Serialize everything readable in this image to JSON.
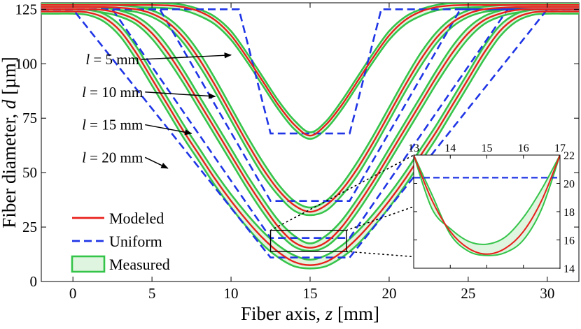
{
  "chart_data": {
    "type": "line",
    "xlabel": "Fiber axis, z [mm]",
    "ylabel": "Fiber diameter, d [µm]",
    "xlim": [
      -2,
      32
    ],
    "ylim": [
      0,
      128
    ],
    "xticks": [
      "0",
      "5",
      "10",
      "15",
      "20",
      "25",
      "30"
    ],
    "yticks": [
      "0",
      "25",
      "50",
      "75",
      "100",
      "125"
    ],
    "grid": false,
    "legend_position": "bottom-left",
    "legend": [
      {
        "name": "Modeled",
        "style": "solid",
        "color": "#e8201c"
      },
      {
        "name": "Uniform",
        "style": "dashed",
        "color": "#1f35e6"
      },
      {
        "name": "Measured",
        "style": "band",
        "color": "#35c44a",
        "fill": "#dff5df"
      }
    ],
    "annotations": [
      {
        "text": "l = 5 mm",
        "l_mm": 5,
        "label_at": [
          2.5,
          102
        ],
        "arrow_to": [
          10.0,
          104
        ]
      },
      {
        "text": "l = 10 mm",
        "l_mm": 10,
        "label_at": [
          2.5,
          87
        ],
        "arrow_to": [
          9.0,
          85
        ]
      },
      {
        "text": "l = 15 mm",
        "l_mm": 15,
        "label_at": [
          2.5,
          72
        ],
        "arrow_to": [
          7.5,
          68
        ]
      },
      {
        "text": "l = 20 mm",
        "l_mm": 20,
        "label_at": [
          2.5,
          57
        ],
        "arrow_to": [
          6.0,
          52
        ]
      }
    ],
    "series": [
      {
        "l_mm": 5,
        "modeled": {
          "x": [
            -2,
            3,
            5,
            6,
            7,
            8,
            9,
            10,
            11,
            12,
            13,
            14,
            15,
            16,
            17,
            18,
            19,
            20,
            21,
            22,
            23,
            24,
            25,
            26,
            27,
            28,
            29,
            30,
            32
          ],
          "y": [
            127,
            127,
            127,
            126.8,
            126,
            124,
            120,
            113,
            103,
            92,
            81,
            72,
            67,
            72,
            81,
            92,
            103,
            113,
            120,
            124,
            126,
            126.8,
            127,
            127,
            127,
            127,
            127,
            127,
            127
          ]
        },
        "measured_upper": {
          "x": [
            -2,
            3,
            6,
            7,
            8,
            9,
            10,
            11,
            12,
            13,
            14,
            15,
            16,
            17,
            18,
            19,
            20,
            21,
            22,
            23,
            24,
            26,
            28,
            30,
            32
          ],
          "y": [
            128,
            128,
            127.7,
            127,
            125,
            121.5,
            115,
            105,
            94,
            83,
            74,
            68.5,
            73.5,
            83,
            94,
            105,
            115,
            121.5,
            125,
            127,
            127.8,
            128,
            128,
            128,
            128
          ]
        },
        "measured_lower": {
          "x": [
            -2,
            3,
            6,
            7,
            8,
            9,
            10,
            11,
            12,
            13,
            14,
            15,
            16,
            17,
            18,
            19,
            20,
            21,
            22,
            23,
            24,
            26,
            28,
            30,
            32
          ],
          "y": [
            126,
            126,
            125.5,
            124.5,
            122,
            118,
            111,
            101,
            90,
            79,
            70,
            65.5,
            70,
            79,
            90,
            101,
            111,
            118,
            122,
            124.5,
            125.5,
            126,
            126,
            126,
            126
          ]
        },
        "uniform": {
          "x": [
            -2,
            10.5,
            12.5,
            17.5,
            19.5,
            32
          ],
          "y": [
            125,
            125,
            68,
            68,
            125,
            125
          ]
        }
      },
      {
        "l_mm": 10,
        "modeled": {
          "x": [
            -2,
            2,
            3,
            4,
            5,
            6,
            7,
            8,
            9,
            10,
            11,
            12,
            13,
            14,
            15,
            16,
            17,
            18,
            19,
            20,
            21,
            22,
            23,
            24,
            25,
            26,
            27,
            28,
            30,
            32
          ],
          "y": [
            126,
            126,
            125.7,
            125,
            123,
            119,
            112,
            102,
            90,
            77,
            64,
            52,
            42,
            35,
            32,
            35,
            42,
            52,
            64,
            77,
            90,
            102,
            112,
            119,
            123,
            125,
            125.7,
            126,
            126,
            126
          ]
        },
        "measured_upper": {
          "x": [
            -2,
            2,
            3,
            4,
            5,
            6,
            7,
            8,
            9,
            10,
            11,
            12,
            13,
            14,
            15,
            16,
            17,
            18,
            19,
            20,
            21,
            22,
            23,
            24,
            25,
            26,
            27,
            28,
            30,
            32
          ],
          "y": [
            127,
            127,
            126.8,
            126.2,
            124.5,
            121,
            114.5,
            105,
            93,
            80,
            67,
            55,
            44.5,
            37,
            34,
            37,
            44.5,
            55,
            67,
            80,
            93,
            105,
            114.5,
            121,
            124.5,
            126.2,
            126.8,
            127,
            127,
            127
          ]
        },
        "measured_lower": {
          "x": [
            -2,
            2,
            3,
            4,
            5,
            6,
            7,
            8,
            9,
            10,
            11,
            12,
            13,
            14,
            15,
            16,
            17,
            18,
            19,
            20,
            21,
            22,
            23,
            24,
            25,
            26,
            27,
            28,
            30,
            32
          ],
          "y": [
            125,
            125,
            124.6,
            123.8,
            121.5,
            117,
            109.5,
            99,
            87,
            74,
            61,
            49,
            39.5,
            32.5,
            30.5,
            32.5,
            39.5,
            49,
            61,
            74,
            87,
            99,
            109.5,
            117,
            121.5,
            123.8,
            124.6,
            125,
            125,
            125
          ]
        },
        "uniform": {
          "x": [
            -2,
            5.5,
            12.5,
            17.5,
            24.5,
            32
          ],
          "y": [
            125,
            125,
            37,
            37,
            125,
            125
          ]
        }
      },
      {
        "l_mm": 15,
        "modeled": {
          "x": [
            -2,
            1,
            2,
            3,
            4,
            5,
            6,
            7,
            8,
            9,
            10,
            11,
            12,
            13,
            14,
            15,
            16,
            17,
            18,
            19,
            20,
            21,
            22,
            23,
            24,
            25,
            26,
            27,
            28,
            29,
            30,
            32
          ],
          "y": [
            125,
            125,
            124.6,
            123,
            120,
            114,
            105,
            94,
            82,
            70,
            58,
            46,
            35,
            25,
            18,
            15.5,
            18,
            25,
            35,
            46,
            58,
            70,
            82,
            94,
            105,
            114,
            120,
            123,
            124.6,
            125,
            125,
            125
          ]
        },
        "measured_upper": {
          "x": [
            -2,
            1,
            2,
            3,
            4,
            5,
            6,
            7,
            8,
            9,
            10,
            11,
            12,
            13,
            14,
            15,
            16,
            17,
            18,
            19,
            20,
            21,
            22,
            23,
            24,
            25,
            26,
            27,
            28,
            29,
            30,
            32
          ],
          "y": [
            126,
            126,
            125.7,
            124.4,
            121.8,
            116.5,
            108,
            97,
            85,
            73,
            61,
            49,
            38,
            28,
            21,
            17.5,
            21,
            28,
            38,
            49,
            61,
            73,
            85,
            97,
            108,
            116.5,
            121.8,
            124.4,
            125.7,
            126,
            126,
            126
          ]
        },
        "measured_lower": {
          "x": [
            -2,
            1,
            2,
            3,
            4,
            5,
            6,
            7,
            8,
            9,
            10,
            11,
            12,
            13,
            14,
            15,
            16,
            17,
            18,
            19,
            20,
            21,
            22,
            23,
            24,
            25,
            26,
            27,
            28,
            29,
            30,
            32
          ],
          "y": [
            124,
            124,
            123.4,
            121.6,
            118.2,
            111.5,
            102,
            91,
            79,
            67,
            55,
            43,
            32,
            22.5,
            16,
            14,
            16,
            22.5,
            32,
            43,
            55,
            67,
            79,
            91,
            102,
            111.5,
            118.2,
            121.6,
            123.4,
            124,
            124,
            124
          ]
        },
        "uniform": {
          "x": [
            -2,
            2.5,
            12.5,
            17.5,
            27.5,
            32
          ],
          "y": [
            125,
            125,
            20,
            20,
            125,
            125
          ]
        }
      },
      {
        "l_mm": 20,
        "modeled": {
          "x": [
            -2,
            -1,
            0,
            1,
            2,
            3,
            4,
            5,
            6,
            7,
            8,
            9,
            10,
            11,
            12,
            13,
            14,
            15,
            16,
            17,
            18,
            19,
            20,
            21,
            22,
            23,
            24,
            25,
            26,
            27,
            28,
            29,
            30,
            31,
            32
          ],
          "y": [
            124,
            124,
            124,
            123.5,
            121,
            115,
            105,
            93,
            81,
            69,
            58,
            47,
            37,
            28,
            20,
            13.5,
            9,
            7.5,
            9,
            13.5,
            20,
            28,
            37,
            47,
            58,
            69,
            81,
            93,
            105,
            115,
            121,
            123.5,
            124,
            124,
            124
          ]
        },
        "measured_upper": {
          "x": [
            -2,
            -1,
            0,
            1,
            2,
            3,
            4,
            5,
            6,
            7,
            8,
            9,
            10,
            11,
            12,
            13,
            14,
            15,
            16,
            17,
            18,
            19,
            20,
            21,
            22,
            23,
            24,
            25,
            26,
            27,
            28,
            29,
            30,
            31,
            32
          ],
          "y": [
            125,
            125,
            125,
            124.7,
            122.8,
            117.5,
            108,
            96,
            84,
            72,
            61,
            50,
            40,
            31,
            23,
            16.5,
            12,
            10,
            12,
            16.5,
            23,
            31,
            40,
            50,
            61,
            72,
            84,
            96,
            108,
            117.5,
            122.8,
            124.7,
            125,
            125,
            125
          ]
        },
        "measured_lower": {
          "x": [
            -2,
            -1,
            0,
            1,
            2,
            3,
            4,
            5,
            6,
            7,
            8,
            9,
            10,
            11,
            12,
            13,
            14,
            15,
            16,
            17,
            18,
            19,
            20,
            21,
            22,
            23,
            24,
            25,
            26,
            27,
            28,
            29,
            30,
            31,
            32
          ],
          "y": [
            123,
            123,
            123,
            122.3,
            119.2,
            112.5,
            102,
            90,
            78,
            66,
            55,
            44,
            34,
            25,
            17,
            11,
            7,
            6,
            7,
            11,
            17,
            25,
            34,
            44,
            55,
            66,
            78,
            90,
            102,
            112.5,
            119.2,
            122.3,
            123,
            123,
            123
          ]
        },
        "uniform": {
          "x": [
            -2,
            0,
            12.5,
            17.5,
            30,
            32
          ],
          "y": [
            125,
            125,
            11,
            11,
            125,
            125
          ]
        }
      }
    ],
    "inset": {
      "source_box": {
        "x": [
          12.5,
          17.3
        ],
        "y": [
          13.8,
          23.5
        ]
      },
      "xlim": [
        13,
        17
      ],
      "ylim": [
        14,
        22
      ],
      "xticks": [
        "13",
        "14",
        "15",
        "16",
        "17"
      ],
      "yticks": [
        "14",
        "16",
        "18",
        "20",
        "22"
      ],
      "modeled": {
        "x": [
          13,
          13.5,
          14,
          14.5,
          15,
          15.5,
          16,
          16.5,
          17
        ],
        "y": [
          22,
          18.8,
          16.6,
          15.4,
          15.0,
          15.4,
          16.6,
          18.8,
          22
        ]
      },
      "measured_upper": {
        "x": [
          13,
          13.5,
          14,
          14.5,
          15,
          15.5,
          16,
          16.5,
          17
        ],
        "y": [
          22,
          18.2,
          16.8,
          15.9,
          15.7,
          16.2,
          17.6,
          19.6,
          22
        ]
      },
      "measured_lower": {
        "x": [
          13,
          13.5,
          14,
          14.5,
          15,
          15.5,
          16,
          16.5,
          17
        ],
        "y": [
          22,
          19.2,
          16.4,
          15.2,
          14.9,
          15.1,
          16.0,
          18.2,
          22
        ]
      },
      "uniform": {
        "x": [
          13,
          17
        ],
        "y": [
          20.4,
          20.4
        ]
      }
    }
  }
}
